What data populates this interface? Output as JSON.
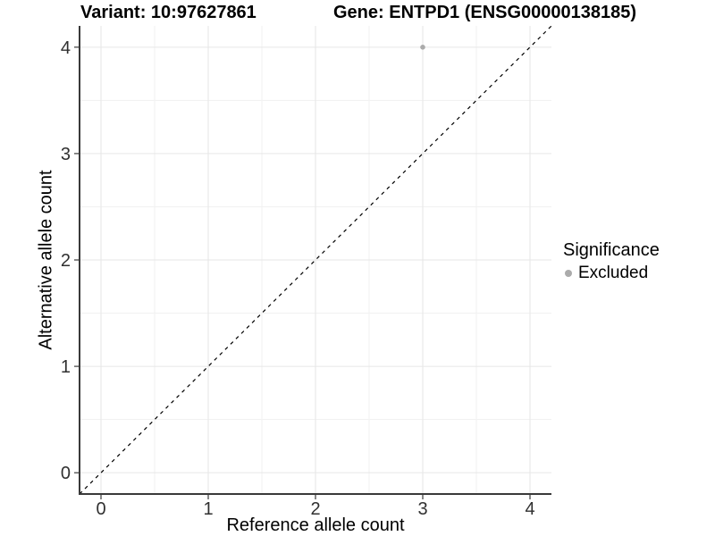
{
  "chart_data": {
    "type": "scatter",
    "title_left": "Variant: 10:97627861",
    "title_right": "Gene: ENTPD1 (ENSG00000138185)",
    "xlabel": "Reference allele count",
    "ylabel": "Alternative allele count",
    "xlim": [
      -0.2,
      4.2
    ],
    "ylim": [
      -0.2,
      4.2
    ],
    "xticks": [
      0,
      1,
      2,
      3,
      4
    ],
    "yticks": [
      0,
      1,
      2,
      3,
      4
    ],
    "minor_gridlines_x": [
      0.5,
      1.5,
      2.5,
      3.5
    ],
    "minor_gridlines_y": [
      0.5,
      1.5,
      2.5,
      3.5
    ],
    "grid": true,
    "legend": {
      "position": "right",
      "title": "Significance",
      "items": [
        {
          "label": "Excluded",
          "color": "#ababab"
        }
      ]
    },
    "series": [
      {
        "name": "Excluded",
        "color": "#ababab",
        "point_radius": 2.8,
        "points": [
          {
            "x": 3,
            "y": 4
          }
        ]
      }
    ],
    "reference_line": {
      "kind": "identity y=x",
      "from": [
        -0.2,
        -0.2
      ],
      "to": [
        4.2,
        4.2
      ],
      "style": "dashed",
      "color": "#000000"
    }
  },
  "colors": {
    "background": "#ffffff",
    "grid_major": "#e6e6e6",
    "grid_minor": "#f1f1f1",
    "axis_line": "#3a3a3a",
    "tick_label": "#303030",
    "point": "#ababab",
    "reference_line": "#000000"
  }
}
